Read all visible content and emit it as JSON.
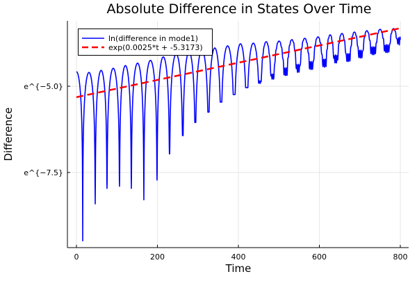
{
  "chart_data": {
    "type": "line",
    "title": "Absolute Difference in States Over Time",
    "xlabel": "Time",
    "ylabel": "Difference",
    "xlim": [
      -22.3,
      820.6
    ],
    "ylim": [
      -9.677,
      -3.105
    ],
    "y_scale": "log (natural), values given as ln",
    "grid": true,
    "legend_position": "top-left",
    "x_ticks": [
      {
        "value": 0,
        "label": "0"
      },
      {
        "value": 200,
        "label": "200"
      },
      {
        "value": 400,
        "label": "400"
      },
      {
        "value": 600,
        "label": "600"
      },
      {
        "value": 800,
        "label": "800"
      }
    ],
    "y_ticks": [
      {
        "value": -5.0,
        "label": "e^{−5.0}"
      },
      {
        "value": -7.5,
        "label": "e^{−7.5}"
      }
    ],
    "series": [
      {
        "name": "ln(difference in mode1)",
        "color": "#0000ff",
        "style": "solid",
        "start": [
          0,
          -4.58
        ],
        "end": [
          800,
          -3.69
        ],
        "troughs_t": [
          15.5,
          46.4,
          75.5,
          106.4,
          135.6,
          166.5,
          199.1,
          230,
          262.7,
          293.6,
          326.2,
          357.1,
          389.7,
          420.6,
          453.2,
          484.1,
          516.7,
          547.6,
          580.3,
          612.9,
          640.3,
          671.2,
          701.9,
          732.9,
          767.2
        ],
        "troughs_y": [
          -9.48,
          -8.41,
          -7.96,
          -7.9,
          -7.96,
          -8.29,
          -7.72,
          -6.96,
          -6.43,
          -6.05,
          -5.75,
          -5.46,
          -5.24,
          -5.04,
          -4.88,
          -4.72,
          -4.58,
          -4.48,
          -4.4,
          -4.33,
          -4.21,
          -4.17,
          -4.07,
          -3.97,
          -3.91
        ],
        "peaks_y": [
          -4.6,
          -4.54,
          -4.48,
          -4.4,
          -4.33,
          -4.25,
          -4.15,
          -4.07,
          -4.01,
          -3.95,
          -3.89,
          -3.83,
          -3.77,
          -3.75,
          -3.71,
          -3.69,
          -3.65,
          -3.61,
          -3.57,
          -3.51,
          -3.47,
          -3.43,
          -3.39,
          -3.35,
          -3.33
        ]
      },
      {
        "name": "exp(0.0025*t + -5.3173)",
        "color": "#ff0000",
        "style": "dashed",
        "slope": 0.0025,
        "intercept": -5.3173,
        "t_range": [
          0,
          800
        ]
      }
    ]
  }
}
